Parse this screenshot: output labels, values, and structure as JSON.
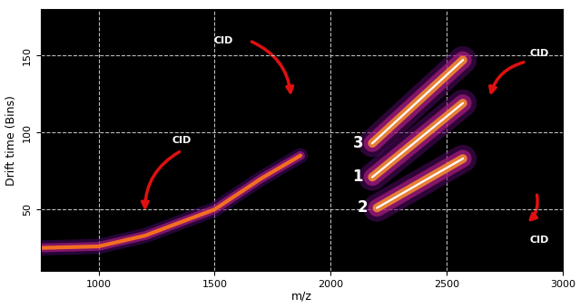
{
  "chart_data": {
    "type": "line",
    "x_label": "m/z",
    "y_label": "Drift time (Bins)",
    "xlim": [
      750,
      3000
    ],
    "ylim": [
      10,
      180
    ],
    "xticks": [
      1000,
      1500,
      2000,
      2500,
      3000
    ],
    "yticks": [
      50,
      100,
      150
    ],
    "grid": true,
    "annotations": [
      "CID",
      "CID",
      "CID",
      "CID"
    ],
    "series": [
      {
        "x": [
          750,
          1000,
          1200,
          1500,
          1700,
          1870
        ],
        "values": [
          25,
          26,
          33,
          50,
          70,
          85
        ],
        "color": "#ff7a1a",
        "line_style": "solid"
      },
      {
        "name": "3",
        "x": [
          2180,
          2570
        ],
        "values": [
          93,
          147
        ],
        "color": "#ffffff",
        "line_style": "solid"
      },
      {
        "name": "1",
        "x": [
          2180,
          2570
        ],
        "values": [
          71,
          119
        ],
        "color": "#ffffff",
        "line_style": "solid"
      },
      {
        "name": "2",
        "x": [
          2200,
          2570
        ],
        "values": [
          51,
          83
        ],
        "color": "#ffffff",
        "line_style": "solid"
      }
    ]
  }
}
